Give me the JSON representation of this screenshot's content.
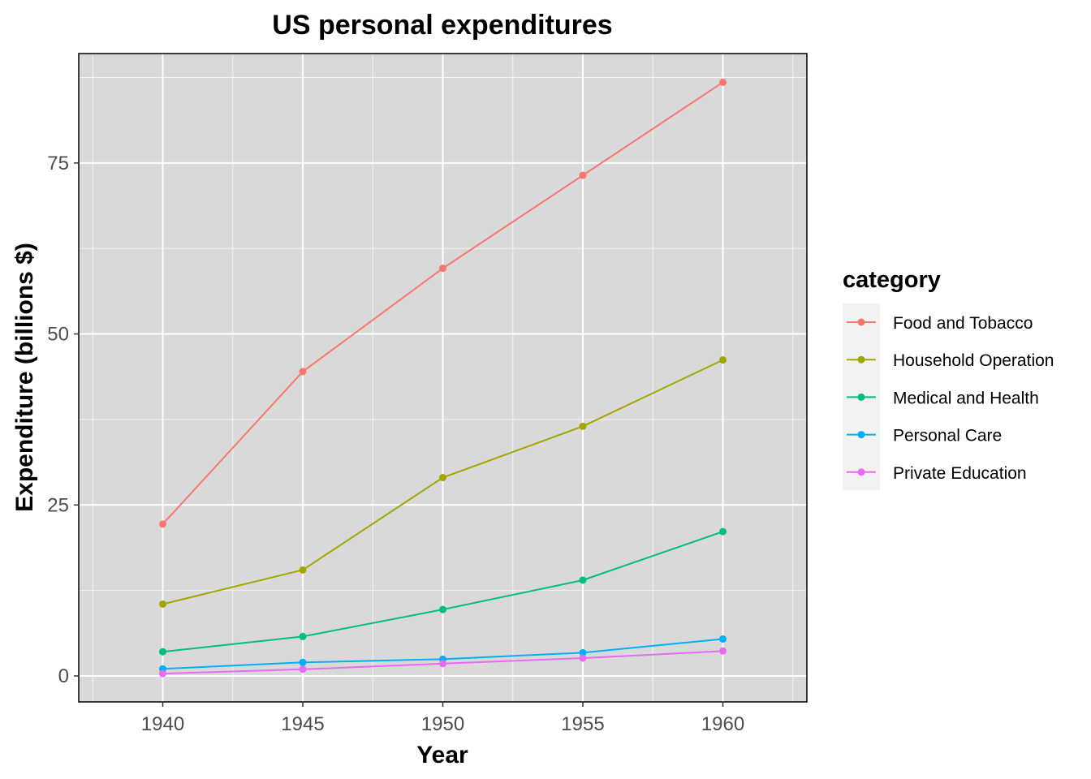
{
  "chart_data": {
    "type": "line",
    "title": "US personal expenditures",
    "xlabel": "Year",
    "ylabel": "Expenditure (billions $)",
    "x": [
      1940,
      1945,
      1950,
      1955,
      1960
    ],
    "xticks": [
      "1940",
      "1945",
      "1950",
      "1955",
      "1960"
    ],
    "yticks": [
      "0",
      "25",
      "50",
      "75"
    ],
    "xlim": [
      1937,
      1963
    ],
    "ylim": [
      -3.8,
      91.0
    ],
    "grid": true,
    "legend": {
      "title": "category",
      "position": "right"
    },
    "series": [
      {
        "name": "Food and Tobacco",
        "color": "#F8766D",
        "values": [
          22.2,
          44.5,
          59.6,
          73.2,
          86.8
        ]
      },
      {
        "name": "Household Operation",
        "color": "#A3A500",
        "values": [
          10.5,
          15.5,
          29.0,
          36.5,
          46.2
        ]
      },
      {
        "name": "Medical and Health",
        "color": "#00BF7D",
        "values": [
          3.53,
          5.76,
          9.71,
          14.0,
          21.1
        ]
      },
      {
        "name": "Personal Care",
        "color": "#00B0F6",
        "values": [
          1.04,
          1.98,
          2.45,
          3.4,
          5.4
        ]
      },
      {
        "name": "Private Education",
        "color": "#E76BF3",
        "values": [
          0.341,
          0.974,
          1.8,
          2.6,
          3.64
        ]
      }
    ]
  }
}
